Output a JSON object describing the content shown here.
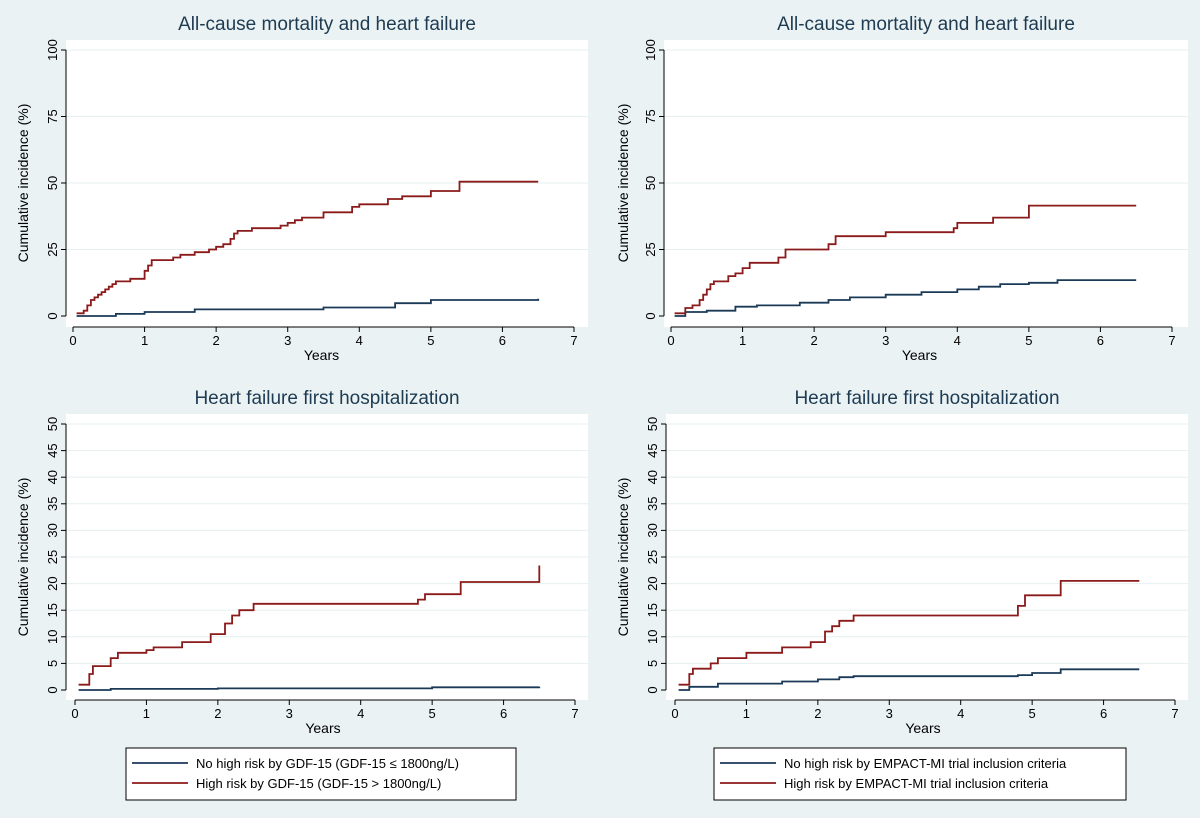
{
  "colors": {
    "background": "#eaf2f3",
    "plot_background": "#ffffff",
    "grid": "#e6efef",
    "title": "#1e3b52",
    "series_low": "#1a3a57",
    "series_high": "#8b1a1a"
  },
  "chart_data": [
    {
      "type": "line",
      "title": "All-cause mortality and heart failure",
      "xlabel": "Years",
      "ylabel": "Cumulative incidence (%)",
      "xlim": [
        0,
        7
      ],
      "ylim": [
        0,
        100
      ],
      "xticks": [
        0,
        1,
        2,
        3,
        4,
        5,
        6,
        7
      ],
      "yticks": [
        0,
        25,
        50,
        75,
        100
      ],
      "grid": true,
      "series": [
        {
          "name": "No high risk by GDF-15 (GDF-15 ≤ 1800ng/L)",
          "color": "series_low",
          "x": [
            0.05,
            0.6,
            1.0,
            1.7,
            3.5,
            4.5,
            5.0,
            6.5
          ],
          "y": [
            0,
            0.8,
            1.5,
            2.5,
            3.2,
            4.8,
            6.0,
            6.5
          ]
        },
        {
          "name": "High risk by GDF-15 (GDF-15 > 1800ng/L)",
          "color": "series_high",
          "x": [
            0.05,
            0.15,
            0.2,
            0.25,
            0.3,
            0.35,
            0.4,
            0.45,
            0.5,
            0.55,
            0.6,
            0.8,
            1.0,
            1.05,
            1.1,
            1.4,
            1.5,
            1.7,
            1.9,
            2.0,
            2.1,
            2.2,
            2.25,
            2.3,
            2.5,
            2.9,
            3.0,
            3.1,
            3.2,
            3.5,
            3.9,
            4.0,
            4.4,
            4.6,
            5.0,
            5.4,
            6.5
          ],
          "y": [
            1,
            2,
            4,
            6,
            7,
            8,
            9,
            10,
            11,
            12,
            13,
            14,
            17,
            19,
            21,
            22,
            23,
            24,
            25,
            26,
            27,
            29,
            31,
            32,
            33,
            34,
            35,
            36,
            37,
            39,
            41,
            42,
            44,
            45,
            47,
            50.5,
            50.5
          ]
        }
      ]
    },
    {
      "type": "line",
      "title": "All-cause mortality and heart failure",
      "xlabel": "Years",
      "ylabel": "Cumulative incidence (%)",
      "xlim": [
        0,
        7
      ],
      "ylim": [
        0,
        100
      ],
      "xticks": [
        0,
        1,
        2,
        3,
        4,
        5,
        6,
        7
      ],
      "yticks": [
        0,
        25,
        50,
        75,
        100
      ],
      "grid": true,
      "series": [
        {
          "name": "No high risk by EMPACT-MI trial inclusion criteria",
          "color": "series_low",
          "x": [
            0.05,
            0.2,
            0.5,
            0.9,
            1.2,
            1.8,
            2.2,
            2.5,
            3.0,
            3.5,
            4.0,
            4.3,
            4.6,
            5.0,
            5.4,
            6.5
          ],
          "y": [
            0,
            1.5,
            2,
            3.5,
            4,
            5,
            6,
            7,
            8,
            9,
            10,
            11,
            12,
            12.5,
            13.5,
            13.5
          ]
        },
        {
          "name": "High risk by EMPACT-MI trial inclusion criteria",
          "color": "series_high",
          "x": [
            0.05,
            0.2,
            0.3,
            0.4,
            0.45,
            0.5,
            0.55,
            0.6,
            0.8,
            0.9,
            1.0,
            1.1,
            1.5,
            1.6,
            2.2,
            2.3,
            3.0,
            3.95,
            4.0,
            4.5,
            5.0,
            6.5
          ],
          "y": [
            1,
            3,
            4,
            6,
            8,
            10,
            12,
            13,
            15,
            16,
            18,
            20,
            22,
            25,
            27,
            30,
            31.5,
            33,
            35,
            37,
            41.5,
            41.5
          ]
        }
      ]
    },
    {
      "type": "line",
      "title": "Heart failure first hospitalization",
      "xlabel": "Years",
      "ylabel": "Cumulative incidence (%)",
      "xlim": [
        0,
        7
      ],
      "ylim": [
        0,
        50
      ],
      "xticks": [
        0,
        1,
        2,
        3,
        4,
        5,
        6,
        7
      ],
      "yticks": [
        0,
        5,
        10,
        15,
        20,
        25,
        30,
        35,
        40,
        45,
        50
      ],
      "grid": true,
      "series": [
        {
          "name": "No high risk by GDF-15 (GDF-15 ≤ 1800ng/L)",
          "color": "series_low",
          "x": [
            0.05,
            0.5,
            2.0,
            5.0,
            6.5
          ],
          "y": [
            0,
            0.2,
            0.3,
            0.5,
            0.6
          ]
        },
        {
          "name": "High risk by GDF-15 (GDF-15 > 1800ng/L)",
          "color": "series_high",
          "x": [
            0.05,
            0.2,
            0.25,
            0.5,
            0.6,
            1.0,
            1.1,
            1.5,
            1.9,
            2.1,
            2.2,
            2.3,
            2.5,
            4.8,
            4.9,
            5.4,
            6.5
          ],
          "y": [
            1,
            3,
            4.5,
            6,
            7,
            7.5,
            8,
            9,
            10.5,
            12.5,
            14,
            15,
            16.2,
            17,
            18,
            20.3,
            23.4
          ]
        }
      ]
    },
    {
      "type": "line",
      "title": "Heart failure first hospitalization",
      "xlabel": "Years",
      "ylabel": "Cumulative incidence (%)",
      "xlim": [
        0,
        7
      ],
      "ylim": [
        0,
        50
      ],
      "xticks": [
        0,
        1,
        2,
        3,
        4,
        5,
        6,
        7
      ],
      "yticks": [
        0,
        5,
        10,
        15,
        20,
        25,
        30,
        35,
        40,
        45,
        50
      ],
      "grid": true,
      "series": [
        {
          "name": "No high risk by EMPACT-MI trial inclusion criteria",
          "color": "series_low",
          "x": [
            0.05,
            0.2,
            0.6,
            1.5,
            2.0,
            2.3,
            2.5,
            4.8,
            5.0,
            5.4,
            6.5
          ],
          "y": [
            0,
            0.6,
            1.2,
            1.6,
            2.0,
            2.4,
            2.6,
            2.8,
            3.2,
            3.9,
            3.9
          ]
        },
        {
          "name": "High risk by EMPACT-MI trial inclusion criteria",
          "color": "series_high",
          "x": [
            0.05,
            0.2,
            0.25,
            0.5,
            0.6,
            1.0,
            1.5,
            1.9,
            2.1,
            2.2,
            2.3,
            2.5,
            4.8,
            4.9,
            5.4,
            6.5
          ],
          "y": [
            1,
            3,
            4,
            5,
            6,
            7,
            8,
            9,
            11,
            12,
            13,
            14,
            15.8,
            17.8,
            20.5,
            20.5
          ]
        }
      ]
    }
  ],
  "legends": [
    {
      "items": [
        {
          "label": "No high risk by GDF-15 (GDF-15 ≤ 1800ng/L)",
          "color": "series_low"
        },
        {
          "label": "High risk by GDF-15 (GDF-15 > 1800ng/L)",
          "color": "series_high"
        }
      ]
    },
    {
      "items": [
        {
          "label": "No high risk by EMPACT-MI trial inclusion criteria",
          "color": "series_low"
        },
        {
          "label": "High risk by EMPACT-MI trial inclusion criteria",
          "color": "series_high"
        }
      ]
    }
  ]
}
